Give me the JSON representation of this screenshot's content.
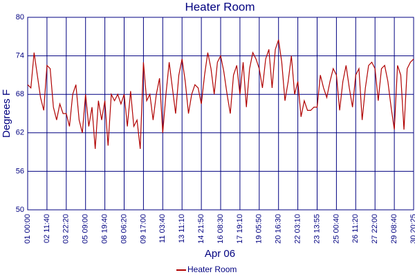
{
  "chart_data": {
    "type": "line",
    "title": "Heater Room",
    "y_label": "Degrees F",
    "x_label": "Apr 06",
    "ylim": [
      50,
      80
    ],
    "yticks": [
      50,
      56,
      62,
      68,
      74,
      80
    ],
    "xlim": [
      0,
      120
    ],
    "xticks": [
      {
        "value": 0,
        "label": "01 00:00"
      },
      {
        "value": 6,
        "label": "02 11:40"
      },
      {
        "value": 12,
        "label": "03 22:20"
      },
      {
        "value": 18,
        "label": "05 09:00"
      },
      {
        "value": 24,
        "label": "06 19:40"
      },
      {
        "value": 30,
        "label": "08 06:20"
      },
      {
        "value": 36,
        "label": "09 17:00"
      },
      {
        "value": 42,
        "label": "11 03:40"
      },
      {
        "value": 48,
        "label": "13 11:10"
      },
      {
        "value": 54,
        "label": "14 21:50"
      },
      {
        "value": 60,
        "label": "16 08:30"
      },
      {
        "value": 66,
        "label": "17 19:10"
      },
      {
        "value": 72,
        "label": "19 05:50"
      },
      {
        "value": 78,
        "label": "20 16:30"
      },
      {
        "value": 84,
        "label": "22 03:10"
      },
      {
        "value": 90,
        "label": "23 13:55"
      },
      {
        "value": 96,
        "label": "25 00:40"
      },
      {
        "value": 102,
        "label": "26 11:20"
      },
      {
        "value": 108,
        "label": "27 22:00"
      },
      {
        "value": 114,
        "label": "29 08:40"
      },
      {
        "value": 120,
        "label": "30 20:25"
      }
    ],
    "grid": true,
    "legend": "bottom",
    "series": [
      {
        "name": "Heater Room",
        "color": "#b00000",
        "values": [
          69.5,
          69,
          74.5,
          71,
          67.5,
          65.5,
          72.5,
          72,
          66,
          64,
          66.5,
          65,
          65,
          63,
          68,
          69.5,
          64,
          62,
          68,
          63,
          66,
          59.5,
          67,
          64,
          67,
          60,
          68,
          67,
          68,
          66.5,
          68,
          63,
          68.5,
          63,
          64,
          59.5,
          73,
          67,
          68,
          64,
          68,
          70.5,
          62,
          68,
          73,
          69,
          65,
          71,
          73.5,
          70,
          65,
          68,
          69.5,
          69,
          66.5,
          71,
          74.5,
          72,
          68,
          73,
          74,
          71.5,
          68,
          65,
          71,
          72.5,
          68,
          73,
          66,
          72,
          74.5,
          73.5,
          72,
          69,
          73.5,
          75,
          69,
          75,
          76.5,
          73,
          67,
          70,
          74,
          68,
          70,
          64.5,
          67,
          65.5,
          65.5,
          66,
          66,
          71,
          69,
          67.5,
          70,
          72,
          71,
          65.5,
          70,
          72.5,
          69,
          66,
          71,
          72,
          64,
          69,
          72.5,
          73,
          72,
          67,
          72,
          72.5,
          70,
          66,
          62.5,
          72.5,
          71,
          62.5,
          72,
          73,
          73.5
        ]
      }
    ]
  }
}
